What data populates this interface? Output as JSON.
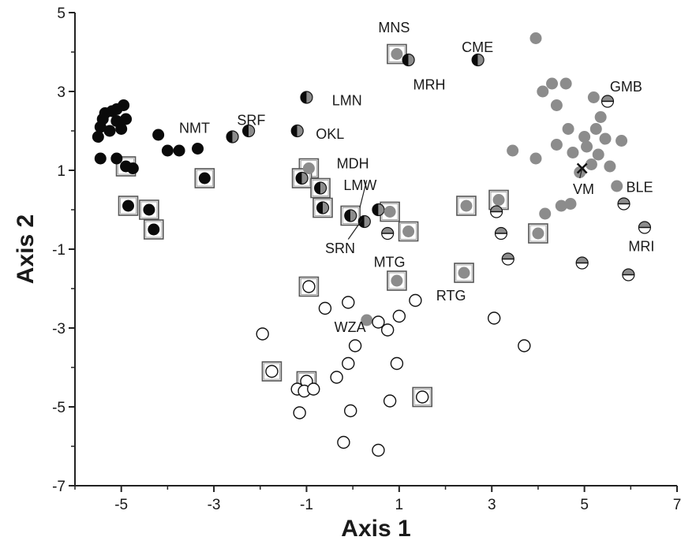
{
  "chart_data": {
    "type": "scatter",
    "xlabel": "Axis 1",
    "ylabel": "Axis 2",
    "xlim": [
      -6,
      7
    ],
    "ylim": [
      -7,
      5
    ],
    "xticks": [
      -5,
      -3,
      -1,
      1,
      3,
      5,
      7
    ],
    "yticks": [
      5,
      3,
      1,
      -1,
      -3,
      -5,
      -7
    ],
    "grid": false,
    "colors": {
      "black": "#0a0a0a",
      "grey": "#8c8c8c",
      "open": "#ffffff",
      "stroke": "#111111",
      "box": "#555555"
    },
    "marker_types": [
      "black",
      "grey",
      "open",
      "half-black-grey",
      "half-black-white",
      "half-grey-white",
      "cross"
    ],
    "points": [
      {
        "x": -5.4,
        "y": 2.3,
        "m": "black"
      },
      {
        "x": -5.35,
        "y": 2.45,
        "m": "black"
      },
      {
        "x": -5.2,
        "y": 2.5,
        "m": "black"
      },
      {
        "x": -5.1,
        "y": 2.25,
        "m": "black"
      },
      {
        "x": -4.95,
        "y": 2.65,
        "m": "black"
      },
      {
        "x": -4.9,
        "y": 2.3,
        "m": "black"
      },
      {
        "x": -5.0,
        "y": 2.05,
        "m": "black"
      },
      {
        "x": -5.25,
        "y": 2.0,
        "m": "black"
      },
      {
        "x": -5.45,
        "y": 2.1,
        "m": "black"
      },
      {
        "x": -5.5,
        "y": 1.85,
        "m": "black"
      },
      {
        "x": -5.1,
        "y": 2.55,
        "m": "black"
      },
      {
        "x": -5.45,
        "y": 1.3,
        "m": "black"
      },
      {
        "x": -5.1,
        "y": 1.3,
        "m": "black"
      },
      {
        "x": -4.2,
        "y": 1.9,
        "m": "black"
      },
      {
        "x": -4.0,
        "y": 1.5,
        "m": "black"
      },
      {
        "x": -3.75,
        "y": 1.5,
        "m": "black"
      },
      {
        "x": -3.35,
        "y": 1.55,
        "m": "black"
      },
      {
        "x": -4.75,
        "y": 1.05,
        "m": "black"
      },
      {
        "x": -4.9,
        "y": 1.1,
        "m": "black",
        "boxed": true
      },
      {
        "x": -3.2,
        "y": 0.8,
        "m": "black",
        "boxed": true
      },
      {
        "x": -4.85,
        "y": 0.1,
        "m": "black",
        "boxed": true
      },
      {
        "x": -4.4,
        "y": 0.0,
        "m": "black",
        "boxed": true
      },
      {
        "x": -4.3,
        "y": -0.5,
        "m": "black",
        "boxed": true
      },
      {
        "x": -2.6,
        "y": 1.85,
        "m": "half-black-grey"
      },
      {
        "x": -2.25,
        "y": 2.0,
        "m": "half-black-grey"
      },
      {
        "x": -1.0,
        "y": 2.85,
        "m": "half-black-grey"
      },
      {
        "x": -1.2,
        "y": 2.0,
        "m": "half-black-grey"
      },
      {
        "x": -0.95,
        "y": 1.05,
        "m": "grey",
        "boxed": true
      },
      {
        "x": -1.1,
        "y": 0.8,
        "m": "half-black-grey",
        "boxed": true
      },
      {
        "x": -0.7,
        "y": 0.55,
        "m": "half-black-grey",
        "boxed": true
      },
      {
        "x": -0.65,
        "y": 0.05,
        "m": "half-black-grey",
        "boxed": true
      },
      {
        "x": -0.05,
        "y": -0.15,
        "m": "half-black-grey",
        "boxed": true
      },
      {
        "x": 0.25,
        "y": -0.3,
        "m": "half-black-grey"
      },
      {
        "x": 0.55,
        "y": 0.0,
        "m": "half-black-grey"
      },
      {
        "x": 0.8,
        "y": -0.05,
        "m": "grey",
        "boxed": true
      },
      {
        "x": 0.95,
        "y": 3.95,
        "m": "grey",
        "boxed": true
      },
      {
        "x": 1.2,
        "y": 3.8,
        "m": "half-black-grey"
      },
      {
        "x": 2.7,
        "y": 3.8,
        "m": "half-black-grey"
      },
      {
        "x": 3.95,
        "y": 4.35,
        "m": "grey"
      },
      {
        "x": 4.1,
        "y": 3.0,
        "m": "grey"
      },
      {
        "x": 4.3,
        "y": 3.2,
        "m": "grey"
      },
      {
        "x": 4.6,
        "y": 3.2,
        "m": "grey"
      },
      {
        "x": 4.4,
        "y": 2.65,
        "m": "grey"
      },
      {
        "x": 5.2,
        "y": 2.85,
        "m": "grey"
      },
      {
        "x": 5.5,
        "y": 2.75,
        "m": "half-grey-white"
      },
      {
        "x": 4.65,
        "y": 2.05,
        "m": "grey"
      },
      {
        "x": 5.0,
        "y": 1.85,
        "m": "grey"
      },
      {
        "x": 5.25,
        "y": 2.05,
        "m": "grey"
      },
      {
        "x": 5.35,
        "y": 2.35,
        "m": "grey"
      },
      {
        "x": 5.45,
        "y": 1.8,
        "m": "grey"
      },
      {
        "x": 5.8,
        "y": 1.75,
        "m": "grey"
      },
      {
        "x": 4.4,
        "y": 1.65,
        "m": "grey"
      },
      {
        "x": 4.75,
        "y": 1.45,
        "m": "grey"
      },
      {
        "x": 5.05,
        "y": 1.6,
        "m": "grey"
      },
      {
        "x": 5.3,
        "y": 1.4,
        "m": "grey"
      },
      {
        "x": 5.55,
        "y": 1.1,
        "m": "grey"
      },
      {
        "x": 5.15,
        "y": 1.15,
        "m": "grey"
      },
      {
        "x": 4.9,
        "y": 0.95,
        "m": "grey"
      },
      {
        "x": 5.7,
        "y": 0.6,
        "m": "grey"
      },
      {
        "x": 4.95,
        "y": 1.05,
        "m": "cross"
      },
      {
        "x": 3.45,
        "y": 1.5,
        "m": "grey"
      },
      {
        "x": 3.95,
        "y": 1.3,
        "m": "grey"
      },
      {
        "x": 4.5,
        "y": 0.1,
        "m": "grey"
      },
      {
        "x": 4.7,
        "y": 0.15,
        "m": "grey"
      },
      {
        "x": 4.15,
        "y": -0.1,
        "m": "grey"
      },
      {
        "x": 5.85,
        "y": 0.15,
        "m": "half-grey-white"
      },
      {
        "x": 6.3,
        "y": -0.45,
        "m": "half-grey-white"
      },
      {
        "x": 2.45,
        "y": 0.1,
        "m": "grey",
        "boxed": true
      },
      {
        "x": 3.15,
        "y": 0.25,
        "m": "grey",
        "boxed": true
      },
      {
        "x": 3.1,
        "y": -0.05,
        "m": "half-grey-white"
      },
      {
        "x": 3.2,
        "y": -0.6,
        "m": "half-grey-white"
      },
      {
        "x": 4.0,
        "y": -0.6,
        "m": "grey",
        "boxed": true
      },
      {
        "x": 3.35,
        "y": -1.25,
        "m": "half-grey-white"
      },
      {
        "x": 4.95,
        "y": -1.35,
        "m": "half-grey-white"
      },
      {
        "x": 5.95,
        "y": -1.65,
        "m": "half-grey-white"
      },
      {
        "x": 0.75,
        "y": -0.6,
        "m": "half-grey-white"
      },
      {
        "x": 1.2,
        "y": -0.55,
        "m": "grey",
        "boxed": true
      },
      {
        "x": 0.95,
        "y": -1.8,
        "m": "grey",
        "boxed": true
      },
      {
        "x": 2.4,
        "y": -1.6,
        "m": "grey",
        "boxed": true
      },
      {
        "x": 0.3,
        "y": -2.8,
        "m": "grey"
      },
      {
        "x": -0.95,
        "y": -1.95,
        "m": "open",
        "boxed": true
      },
      {
        "x": -0.6,
        "y": -2.5,
        "m": "open"
      },
      {
        "x": -0.1,
        "y": -2.35,
        "m": "open"
      },
      {
        "x": 0.55,
        "y": -2.85,
        "m": "open"
      },
      {
        "x": 0.75,
        "y": -3.05,
        "m": "open"
      },
      {
        "x": 1.0,
        "y": -2.7,
        "m": "open"
      },
      {
        "x": 1.35,
        "y": -2.3,
        "m": "open"
      },
      {
        "x": -1.95,
        "y": -3.15,
        "m": "open"
      },
      {
        "x": 0.05,
        "y": -3.45,
        "m": "open"
      },
      {
        "x": -0.1,
        "y": -3.9,
        "m": "open"
      },
      {
        "x": -0.35,
        "y": -4.25,
        "m": "open"
      },
      {
        "x": 0.95,
        "y": -3.9,
        "m": "open"
      },
      {
        "x": -1.75,
        "y": -4.1,
        "m": "open",
        "boxed": true
      },
      {
        "x": -1.0,
        "y": -4.35,
        "m": "open",
        "boxed": true
      },
      {
        "x": -1.2,
        "y": -4.55,
        "m": "open"
      },
      {
        "x": -1.05,
        "y": -4.6,
        "m": "open"
      },
      {
        "x": -0.85,
        "y": -4.55,
        "m": "open"
      },
      {
        "x": -1.15,
        "y": -5.15,
        "m": "open"
      },
      {
        "x": -0.05,
        "y": -5.1,
        "m": "open"
      },
      {
        "x": 0.8,
        "y": -4.85,
        "m": "open"
      },
      {
        "x": 1.5,
        "y": -4.75,
        "m": "open",
        "boxed": true
      },
      {
        "x": -0.2,
        "y": -5.9,
        "m": "open"
      },
      {
        "x": 0.55,
        "y": -6.1,
        "m": "open"
      },
      {
        "x": 3.05,
        "y": -2.75,
        "m": "open"
      },
      {
        "x": 3.7,
        "y": -3.45,
        "m": "open"
      }
    ],
    "annotations": [
      {
        "text": "MNS",
        "x": 0.55,
        "y": 4.5
      },
      {
        "text": "CME",
        "x": 2.35,
        "y": 4.0
      },
      {
        "text": "MRH",
        "x": 1.3,
        "y": 3.05
      },
      {
        "text": "LMN",
        "x": -0.45,
        "y": 2.65
      },
      {
        "text": "NMT",
        "x": -3.75,
        "y": 1.95
      },
      {
        "text": "SRF",
        "x": -2.5,
        "y": 2.15
      },
      {
        "text": "OKL",
        "x": -0.8,
        "y": 1.8
      },
      {
        "text": "GMB",
        "x": 5.55,
        "y": 3.0
      },
      {
        "text": "MDH",
        "x": -0.35,
        "y": 1.05
      },
      {
        "text": "LMW",
        "x": -0.2,
        "y": 0.5
      },
      {
        "text": "VM",
        "x": 4.75,
        "y": 0.4
      },
      {
        "text": "BLE",
        "x": 5.9,
        "y": 0.45
      },
      {
        "text": "SRN",
        "x": -0.6,
        "y": -1.1
      },
      {
        "text": "MRI",
        "x": 5.95,
        "y": -1.05
      },
      {
        "text": "MTG",
        "x": 0.45,
        "y": -1.45
      },
      {
        "text": "RTG",
        "x": 1.8,
        "y": -2.3
      },
      {
        "text": "WZA",
        "x": -0.4,
        "y": -3.1
      }
    ],
    "leader_lines": [
      {
        "from": [
          0.3,
          0.75
        ],
        "to": [
          0.15,
          0.05
        ]
      },
      {
        "from": [
          -0.1,
          -0.75
        ],
        "to": [
          0.2,
          -0.25
        ]
      },
      {
        "from": [
          4.9,
          0.8
        ],
        "to": [
          4.95,
          1.05
        ]
      }
    ]
  }
}
